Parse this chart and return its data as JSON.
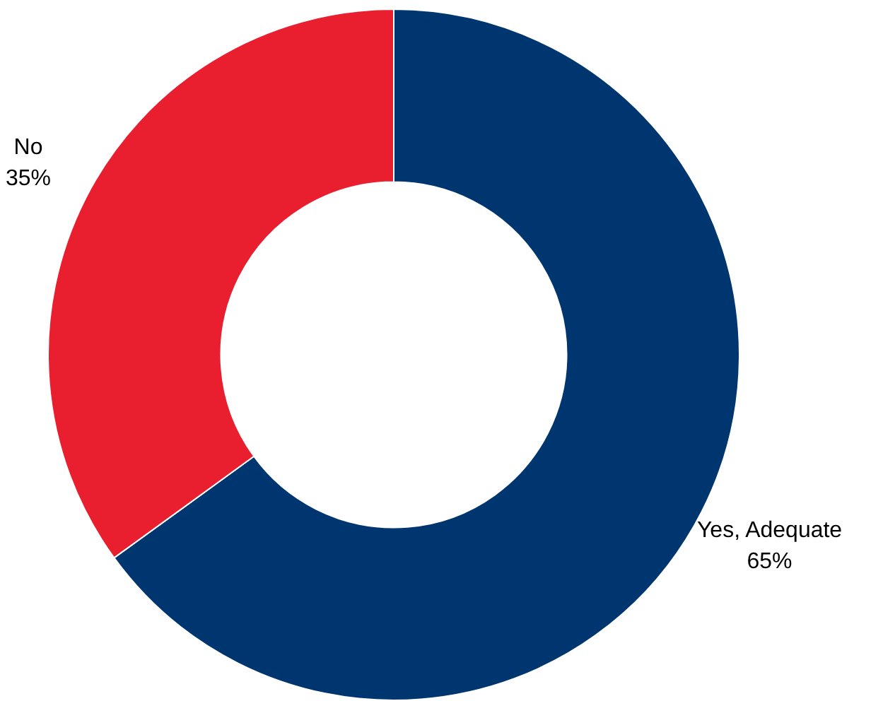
{
  "chart_data": {
    "type": "donut",
    "categories": [
      "Yes, Adequate",
      "No"
    ],
    "values": [
      65,
      35
    ],
    "colors": [
      "#003670",
      "#e91f2f"
    ],
    "value_labels": [
      "65%",
      "35%"
    ],
    "legend": false
  }
}
